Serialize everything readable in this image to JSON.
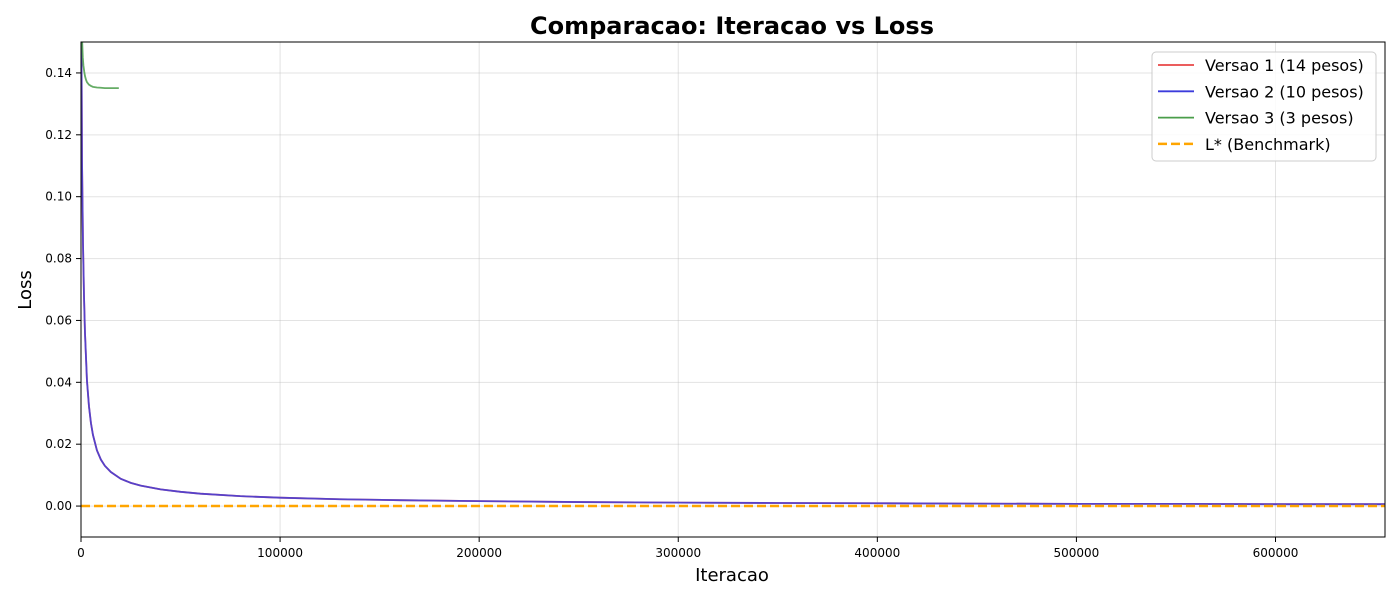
{
  "chart_data": {
    "type": "line",
    "title": "Comparacao: Iteracao vs Loss",
    "xlabel": "Iteracao",
    "ylabel": "Loss",
    "xlim": [
      0,
      655000
    ],
    "ylim": [
      -0.01,
      0.15
    ],
    "xticks": [
      0,
      100000,
      200000,
      300000,
      400000,
      500000,
      600000
    ],
    "yticks": [
      0.0,
      0.02,
      0.04,
      0.06,
      0.08,
      0.1,
      0.12,
      0.14
    ],
    "xtick_labels": [
      "0",
      "100000",
      "200000",
      "300000",
      "400000",
      "500000",
      "600000"
    ],
    "ytick_labels": [
      "0.00",
      "0.02",
      "0.04",
      "0.06",
      "0.08",
      "0.10",
      "0.12",
      "0.14"
    ],
    "grid": true,
    "legend_position": "top-right",
    "series": [
      {
        "name": "Versao 1 (14 pesos)",
        "color": "#e84646",
        "dash": "solid",
        "x": [
          0,
          500,
          1000,
          1500,
          2000,
          3000,
          4000,
          5000,
          6000,
          8000,
          10000,
          12000,
          15000,
          20000,
          25000,
          30000,
          40000,
          50000,
          60000,
          80000,
          100000,
          130000,
          160000,
          200000,
          250000,
          300000,
          350000,
          400000,
          450000,
          500000,
          550000,
          600000,
          655000
        ],
        "y": [
          0.18,
          0.112,
          0.085,
          0.068,
          0.056,
          0.0405,
          0.0323,
          0.0268,
          0.023,
          0.018,
          0.015,
          0.013,
          0.011,
          0.0088,
          0.0075,
          0.0066,
          0.0054,
          0.0046,
          0.004,
          0.0032,
          0.0027,
          0.0022,
          0.0019,
          0.0016,
          0.0013,
          0.0011,
          0.001,
          0.0009,
          0.0008,
          0.0007,
          0.0007,
          0.0006,
          0.0006
        ]
      },
      {
        "name": "Versao 2 (10 pesos)",
        "color": "#3c3cdc",
        "dash": "solid",
        "x": [
          0,
          500,
          1000,
          1500,
          2000,
          3000,
          4000,
          5000,
          6000,
          8000,
          10000,
          12000,
          15000,
          20000,
          25000,
          30000,
          40000,
          50000,
          60000,
          80000,
          100000,
          130000,
          160000,
          200000,
          250000,
          300000,
          350000,
          400000,
          450000,
          500000,
          550000,
          600000,
          655000
        ],
        "y": [
          0.18,
          0.112,
          0.085,
          0.068,
          0.056,
          0.0405,
          0.0323,
          0.0268,
          0.023,
          0.018,
          0.015,
          0.013,
          0.011,
          0.0088,
          0.0075,
          0.0066,
          0.0054,
          0.0046,
          0.004,
          0.0032,
          0.0027,
          0.0022,
          0.0019,
          0.0016,
          0.0013,
          0.0011,
          0.001,
          0.0009,
          0.0008,
          0.0007,
          0.0007,
          0.0006,
          0.0006
        ]
      },
      {
        "name": "Versao 3 (3 pesos)",
        "color": "#4a9e4a",
        "dash": "solid",
        "x": [
          0,
          300,
          600,
          900,
          1200,
          1600,
          2000,
          2500,
          3000,
          4000,
          5000,
          6000,
          8000,
          10000,
          12000,
          15000,
          18000,
          19000
        ],
        "y": [
          0.18,
          0.158,
          0.15,
          0.145,
          0.1425,
          0.1405,
          0.139,
          0.1378,
          0.137,
          0.1362,
          0.1358,
          0.1355,
          0.1353,
          0.1352,
          0.1351,
          0.1351,
          0.1351,
          0.1351
        ]
      },
      {
        "name": "L* (Benchmark)",
        "color": "#ffa500",
        "dash": "dashed",
        "x": [
          0,
          655000
        ],
        "y": [
          0.0,
          0.0
        ]
      }
    ]
  }
}
